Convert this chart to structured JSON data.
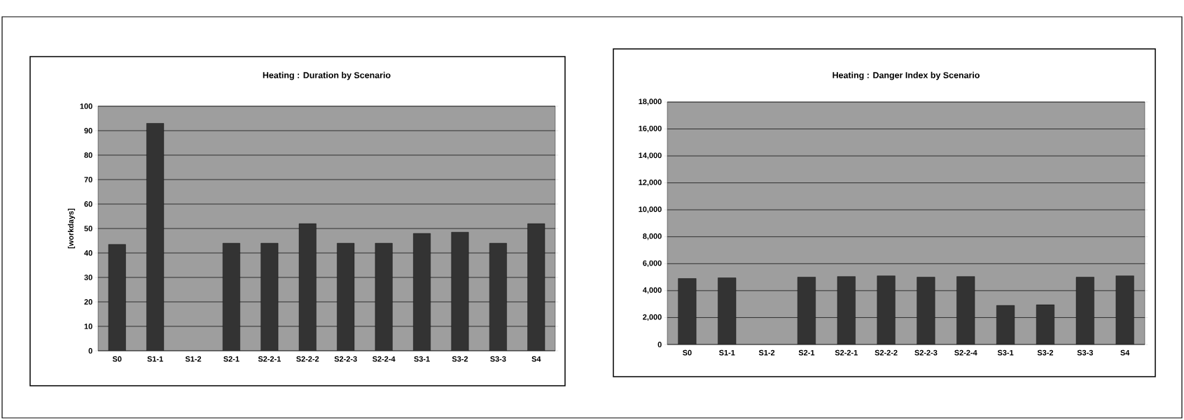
{
  "chart_data": [
    {
      "type": "bar",
      "title": "Heating : Duration by Scenario",
      "ylabel": "[workdays]",
      "categories": [
        "S0",
        "S1-1",
        "S1-2",
        "S2-1",
        "S2-2-1",
        "S2-2-2",
        "S2-2-3",
        "S2-2-4",
        "S3-1",
        "S3-2",
        "S3-3",
        "S4"
      ],
      "values": [
        43.5,
        93,
        null,
        44,
        44,
        52,
        44,
        44,
        48,
        48.5,
        44,
        52
      ],
      "color": "#333333",
      "ylim": [
        0,
        100
      ],
      "yticks": [
        0,
        10,
        20,
        30,
        40,
        50,
        60,
        70,
        80,
        90,
        100
      ],
      "grid": "y"
    },
    {
      "type": "bar",
      "title": "Heating : Danger Index by Scenario",
      "categories": [
        "S0",
        "S1-1",
        "S1-2",
        "S2-1",
        "S2-2-1",
        "S2-2-2",
        "S2-2-3",
        "S2-2-4",
        "S3-1",
        "S3-2",
        "S3-3",
        "S4"
      ],
      "values": [
        4900,
        4950,
        null,
        5000,
        5050,
        5100,
        5000,
        5050,
        2900,
        2950,
        5000,
        5100
      ],
      "color": "#333333",
      "ylim": [
        0,
        18000
      ],
      "yticks": [
        0,
        {
          "value": 2000,
          "label": "2,000"
        },
        {
          "value": 4000,
          "label": "4,000"
        },
        {
          "value": 6000,
          "label": "6,000"
        },
        {
          "value": 8000,
          "label": "8,000"
        },
        {
          "value": 10000,
          "label": "10,000"
        },
        {
          "value": 12000,
          "label": "12,000"
        },
        {
          "value": 14000,
          "label": "14,000"
        },
        {
          "value": 16000,
          "label": "16,000"
        },
        {
          "value": 18000,
          "label": "18,000"
        }
      ],
      "grid": "y"
    }
  ]
}
